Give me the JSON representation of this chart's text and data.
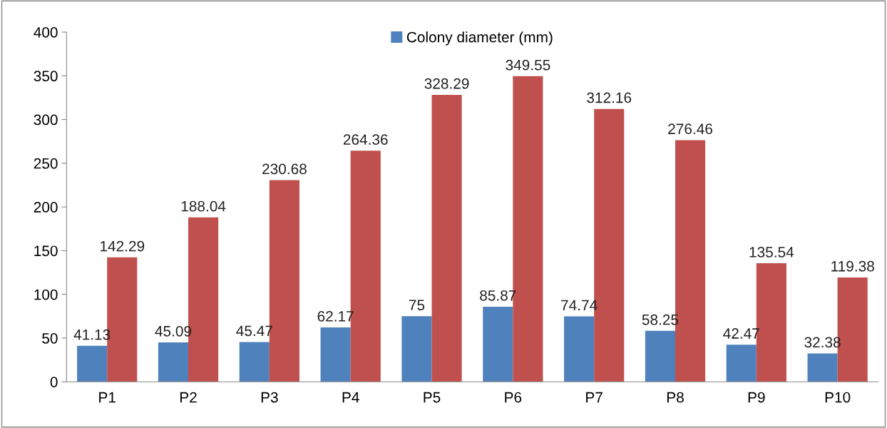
{
  "chart_data": {
    "type": "bar",
    "categories": [
      "P1",
      "P2",
      "P3",
      "P4",
      "P5",
      "P6",
      "P7",
      "P8",
      "P9",
      "P10"
    ],
    "series": [
      {
        "name": "Colony diameter (mm)",
        "color": "#4f81bd",
        "values": [
          41.13,
          45.09,
          45.47,
          62.17,
          75,
          85.87,
          74.74,
          58.25,
          42.47,
          32.38
        ]
      },
      {
        "color": "#c0504d",
        "values": [
          142.29,
          188.04,
          230.68,
          264.36,
          328.29,
          349.55,
          312.16,
          276.46,
          135.54,
          119.38
        ]
      }
    ],
    "ylim": [
      0,
      400
    ],
    "yticks": [
      0,
      50,
      100,
      150,
      200,
      250,
      300,
      350,
      400
    ],
    "data_labels": true,
    "grid": false,
    "legend": "top"
  }
}
